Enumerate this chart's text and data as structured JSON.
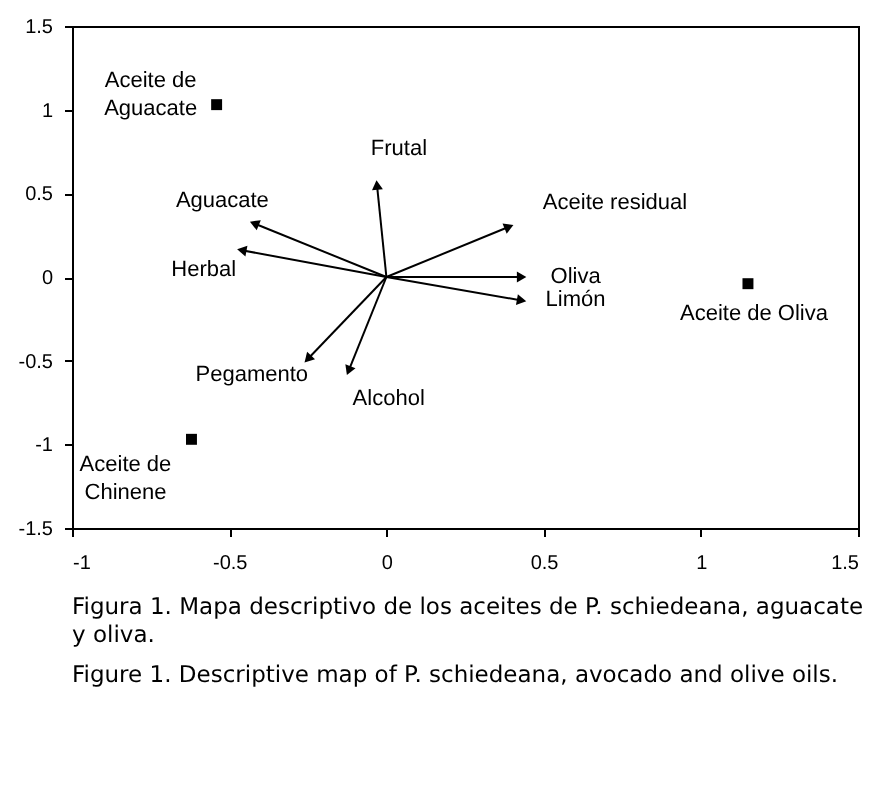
{
  "chart_data": {
    "type": "scatter",
    "xlim": [
      -1,
      1.5
    ],
    "ylim": [
      -1.5,
      1.5
    ],
    "xticks": [
      -1,
      -0.5,
      0,
      0.5,
      1,
      1.5
    ],
    "yticks": [
      -1.5,
      -1,
      -0.5,
      0,
      0.5,
      1,
      1.5
    ],
    "grid": false,
    "series": [
      {
        "marker": "square",
        "color": "#000000",
        "x": [
          -0.54,
          -0.62,
          1.15
        ],
        "values": [
          1.03,
          -0.97,
          -0.04
        ]
      },
      {
        "type": "line",
        "color": "#000000",
        "x": [
          0,
          -0.03
        ],
        "values": [
          0,
          0.55
        ]
      },
      {
        "type": "line",
        "color": "#000000",
        "x": [
          0,
          -0.42
        ],
        "values": [
          0,
          0.32
        ]
      },
      {
        "type": "line",
        "color": "#000000",
        "x": [
          0,
          -0.46
        ],
        "values": [
          0,
          0.16
        ]
      },
      {
        "type": "line",
        "color": "#000000",
        "x": [
          0,
          -0.25
        ],
        "values": [
          0,
          -0.49
        ]
      },
      {
        "type": "line",
        "color": "#000000",
        "x": [
          0,
          -0.12
        ],
        "values": [
          0,
          -0.56
        ]
      },
      {
        "type": "line",
        "color": "#000000",
        "x": [
          0,
          0.39
        ],
        "values": [
          0,
          0.3
        ]
      },
      {
        "type": "line",
        "color": "#000000",
        "x": [
          0,
          0.43
        ],
        "values": [
          0,
          0
        ]
      },
      {
        "type": "line",
        "color": "#000000",
        "x": [
          0,
          0.43
        ],
        "values": [
          0,
          -0.14
        ]
      }
    ],
    "annotations": [
      {
        "text": "Aceite de\nAguacate",
        "x": -0.54,
        "y": 1.03
      },
      {
        "text": "Frutal",
        "x": -0.03,
        "y": 0.55
      },
      {
        "text": "Aguacate",
        "x": -0.42,
        "y": 0.32
      },
      {
        "text": "Aceite residual",
        "x": 0.39,
        "y": 0.3
      },
      {
        "text": "Herbal",
        "x": -0.46,
        "y": 0.16
      },
      {
        "text": "Oliva",
        "x": 0.43,
        "y": 0
      },
      {
        "text": "Limón",
        "x": 0.43,
        "y": -0.14
      },
      {
        "text": "Aceite de Oliva",
        "x": 1.15,
        "y": -0.04
      },
      {
        "text": "Pegamento",
        "x": -0.25,
        "y": -0.49
      },
      {
        "text": "Alcohol",
        "x": -0.12,
        "y": -0.56
      },
      {
        "text": "Aceite de\nChinene",
        "x": -0.62,
        "y": -0.97
      },
      "Figura 1. Mapa descriptivo de los aceites de P. schiedeana, aguacate y oliva.",
      "Figure 1. Descriptive map of P. schiedeana, avocado and olive oils."
    ]
  }
}
